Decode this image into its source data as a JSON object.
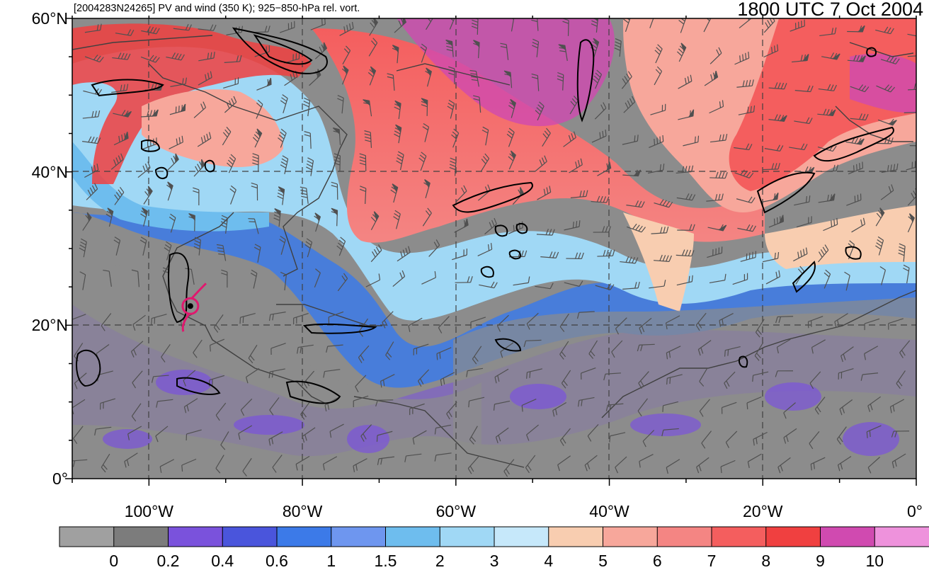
{
  "header": {
    "left_title": "[2004283N24265] PV and wind (350 K); 925−850-hPa rel. vort.",
    "right_title": "1800 UTC 7 Oct 2004"
  },
  "map": {
    "lat_labels": [
      {
        "text": "60°N",
        "lat": 60
      },
      {
        "text": "40°N",
        "lat": 40
      },
      {
        "text": "20°N",
        "lat": 20
      },
      {
        "text": "0°",
        "lat": 0
      }
    ],
    "lon_labels": [
      {
        "text": "100°W",
        "lon": -100
      },
      {
        "text": "80°W",
        "lon": -80
      },
      {
        "text": "60°W",
        "lon": -60
      },
      {
        "text": "40°W",
        "lon": -40
      },
      {
        "text": "20°W",
        "lon": -20
      },
      {
        "text": "0°",
        "lon": 0
      }
    ],
    "lon_range": [
      -110,
      0
    ],
    "lat_range": [
      0,
      60
    ],
    "grid_style": "dashed",
    "storm_symbol": "hurricane-icon",
    "storm_color": "#e0186e",
    "storm_center": {
      "lon": -94.6,
      "lat": 22.5
    }
  },
  "colorbar": {
    "labels": [
      "0",
      "0.2",
      "0.4",
      "0.6",
      "1",
      "1.5",
      "2",
      "3",
      "4",
      "5",
      "6",
      "7",
      "8",
      "9",
      "10"
    ],
    "colors": [
      "#a0a0a0",
      "#7c7c7c",
      "#7a52dc",
      "#4a55dc",
      "#3c7ae8",
      "#6e96ef",
      "#6ebdee",
      "#a0d8f5",
      "#c6e8fa",
      "#f8cdb0",
      "#f7a79b",
      "#f48583",
      "#f45e5e",
      "#f04040",
      "#d04ab0",
      "#ee92dc"
    ]
  }
}
